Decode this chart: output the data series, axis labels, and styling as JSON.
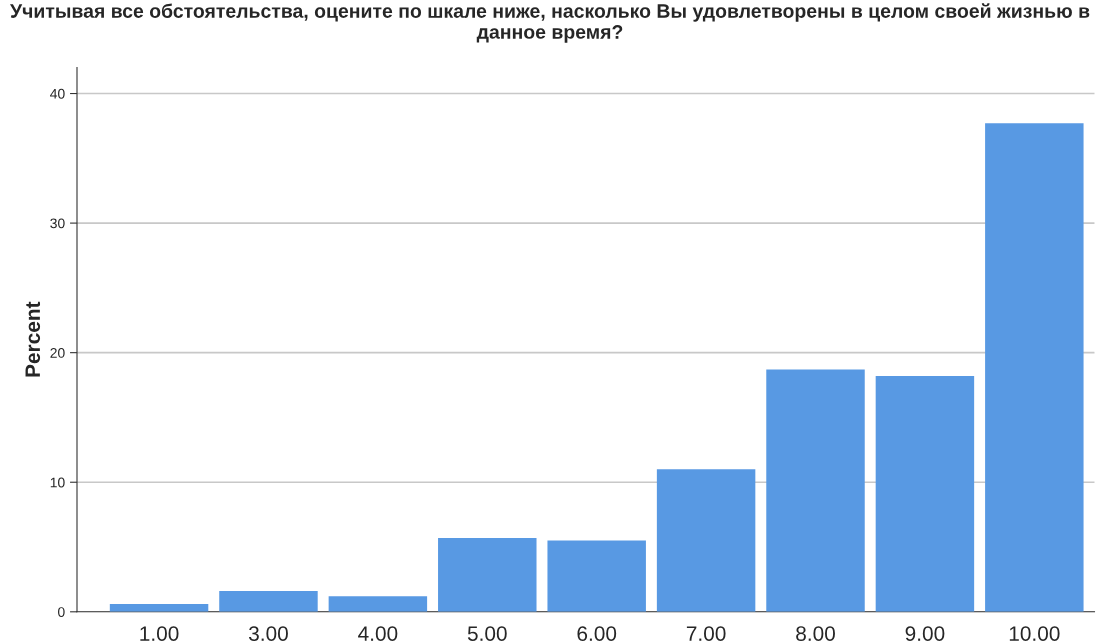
{
  "chart_data": {
    "type": "bar",
    "title": "Учитывая все обстоятельства, оцените по шкале ниже, насколько Вы удовлетворены в целом своей жизнью в данное время?",
    "ylabel": "Percent",
    "categories": [
      "1.00",
      "3.00",
      "4.00",
      "5.00",
      "6.00",
      "7.00",
      "8.00",
      "9.00",
      "10.00"
    ],
    "values": [
      0.6,
      1.6,
      1.2,
      5.7,
      5.5,
      11.0,
      18.7,
      18.2,
      37.7
    ],
    "color": "#5899e3",
    "ylim": [
      0,
      42
    ],
    "yticks": [
      0,
      10,
      20,
      30,
      40
    ],
    "grid": "y"
  }
}
